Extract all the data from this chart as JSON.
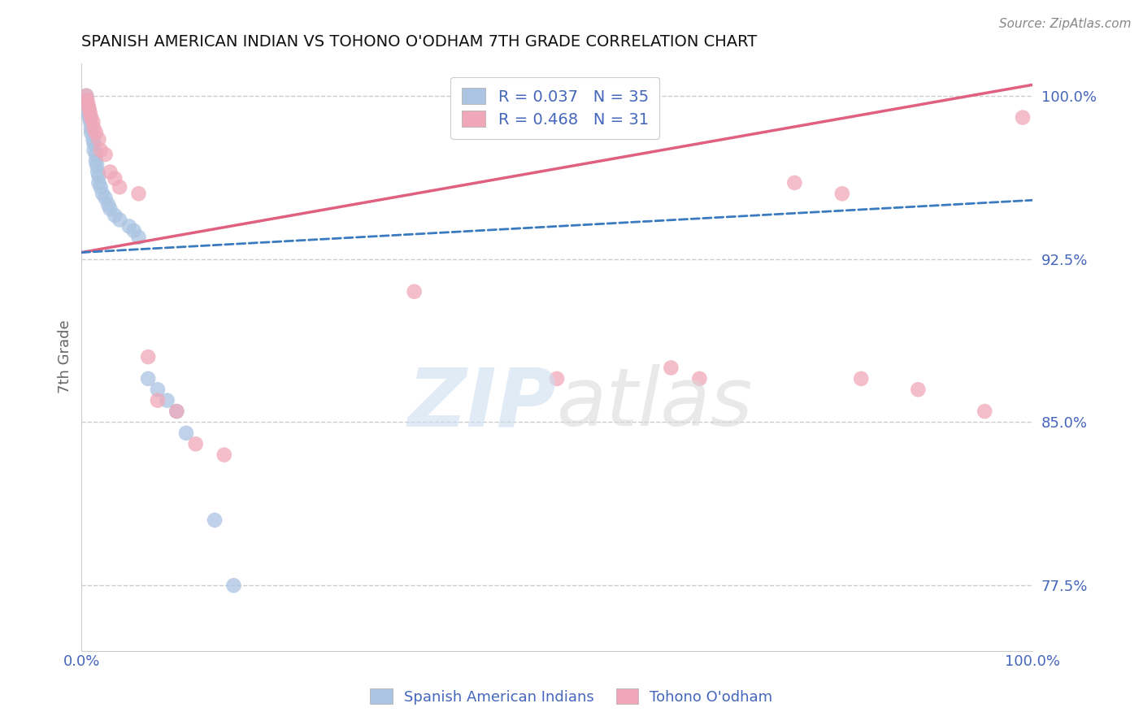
{
  "title": "SPANISH AMERICAN INDIAN VS TOHONO O'ODHAM 7TH GRADE CORRELATION CHART",
  "source": "Source: ZipAtlas.com",
  "ylabel": "7th Grade",
  "xlim": [
    0.0,
    1.0
  ],
  "ylim": [
    0.745,
    1.015
  ],
  "yticks": [
    0.775,
    0.85,
    0.925,
    1.0
  ],
  "ytick_labels": [
    "77.5%",
    "85.0%",
    "92.5%",
    "100.0%"
  ],
  "legend_r1": "R = 0.037   N = 35",
  "legend_r2": "R = 0.468   N = 31",
  "blue_color": "#aac4e2",
  "pink_color": "#f0a8b8",
  "blue_line_color": "#3a7abf",
  "pink_line_color": "#e06080",
  "title_color": "#111111",
  "axis_label_color": "#666666",
  "tick_color": "#4466bb",
  "grid_color": "#cccccc",
  "blue_scatter_x": [
    0.005,
    0.005,
    0.005,
    0.007,
    0.007,
    0.008,
    0.009,
    0.01,
    0.01,
    0.012,
    0.013,
    0.013,
    0.015,
    0.015,
    0.016,
    0.017,
    0.018,
    0.018,
    0.02,
    0.022,
    0.025,
    0.028,
    0.03,
    0.035,
    0.04,
    0.05,
    0.055,
    0.06,
    0.07,
    0.08,
    0.09,
    0.1,
    0.11,
    0.14,
    0.16
  ],
  "blue_scatter_y": [
    1.0,
    0.998,
    0.996,
    0.994,
    0.992,
    0.99,
    0.988,
    0.985,
    0.983,
    0.98,
    0.978,
    0.975,
    0.973,
    0.97,
    0.968,
    0.965,
    0.963,
    0.96,
    0.958,
    0.955,
    0.953,
    0.95,
    0.948,
    0.945,
    0.943,
    0.94,
    0.938,
    0.935,
    0.87,
    0.865,
    0.86,
    0.855,
    0.845,
    0.805,
    0.775
  ],
  "pink_scatter_x": [
    0.005,
    0.006,
    0.007,
    0.008,
    0.009,
    0.01,
    0.012,
    0.013,
    0.015,
    0.018,
    0.02,
    0.025,
    0.03,
    0.035,
    0.04,
    0.06,
    0.07,
    0.08,
    0.1,
    0.12,
    0.15,
    0.35,
    0.5,
    0.62,
    0.65,
    0.75,
    0.8,
    0.82,
    0.88,
    0.95,
    0.99
  ],
  "pink_scatter_y": [
    1.0,
    0.998,
    0.996,
    0.994,
    0.992,
    0.99,
    0.988,
    0.985,
    0.983,
    0.98,
    0.975,
    0.973,
    0.965,
    0.962,
    0.958,
    0.955,
    0.88,
    0.86,
    0.855,
    0.84,
    0.835,
    0.91,
    0.87,
    0.875,
    0.87,
    0.96,
    0.955,
    0.87,
    0.865,
    0.855,
    0.99
  ],
  "blue_trend_x": [
    0.0,
    1.0
  ],
  "blue_trend_y": [
    0.928,
    0.952
  ],
  "pink_trend_x": [
    0.0,
    1.0
  ],
  "pink_trend_y": [
    0.928,
    1.005
  ]
}
